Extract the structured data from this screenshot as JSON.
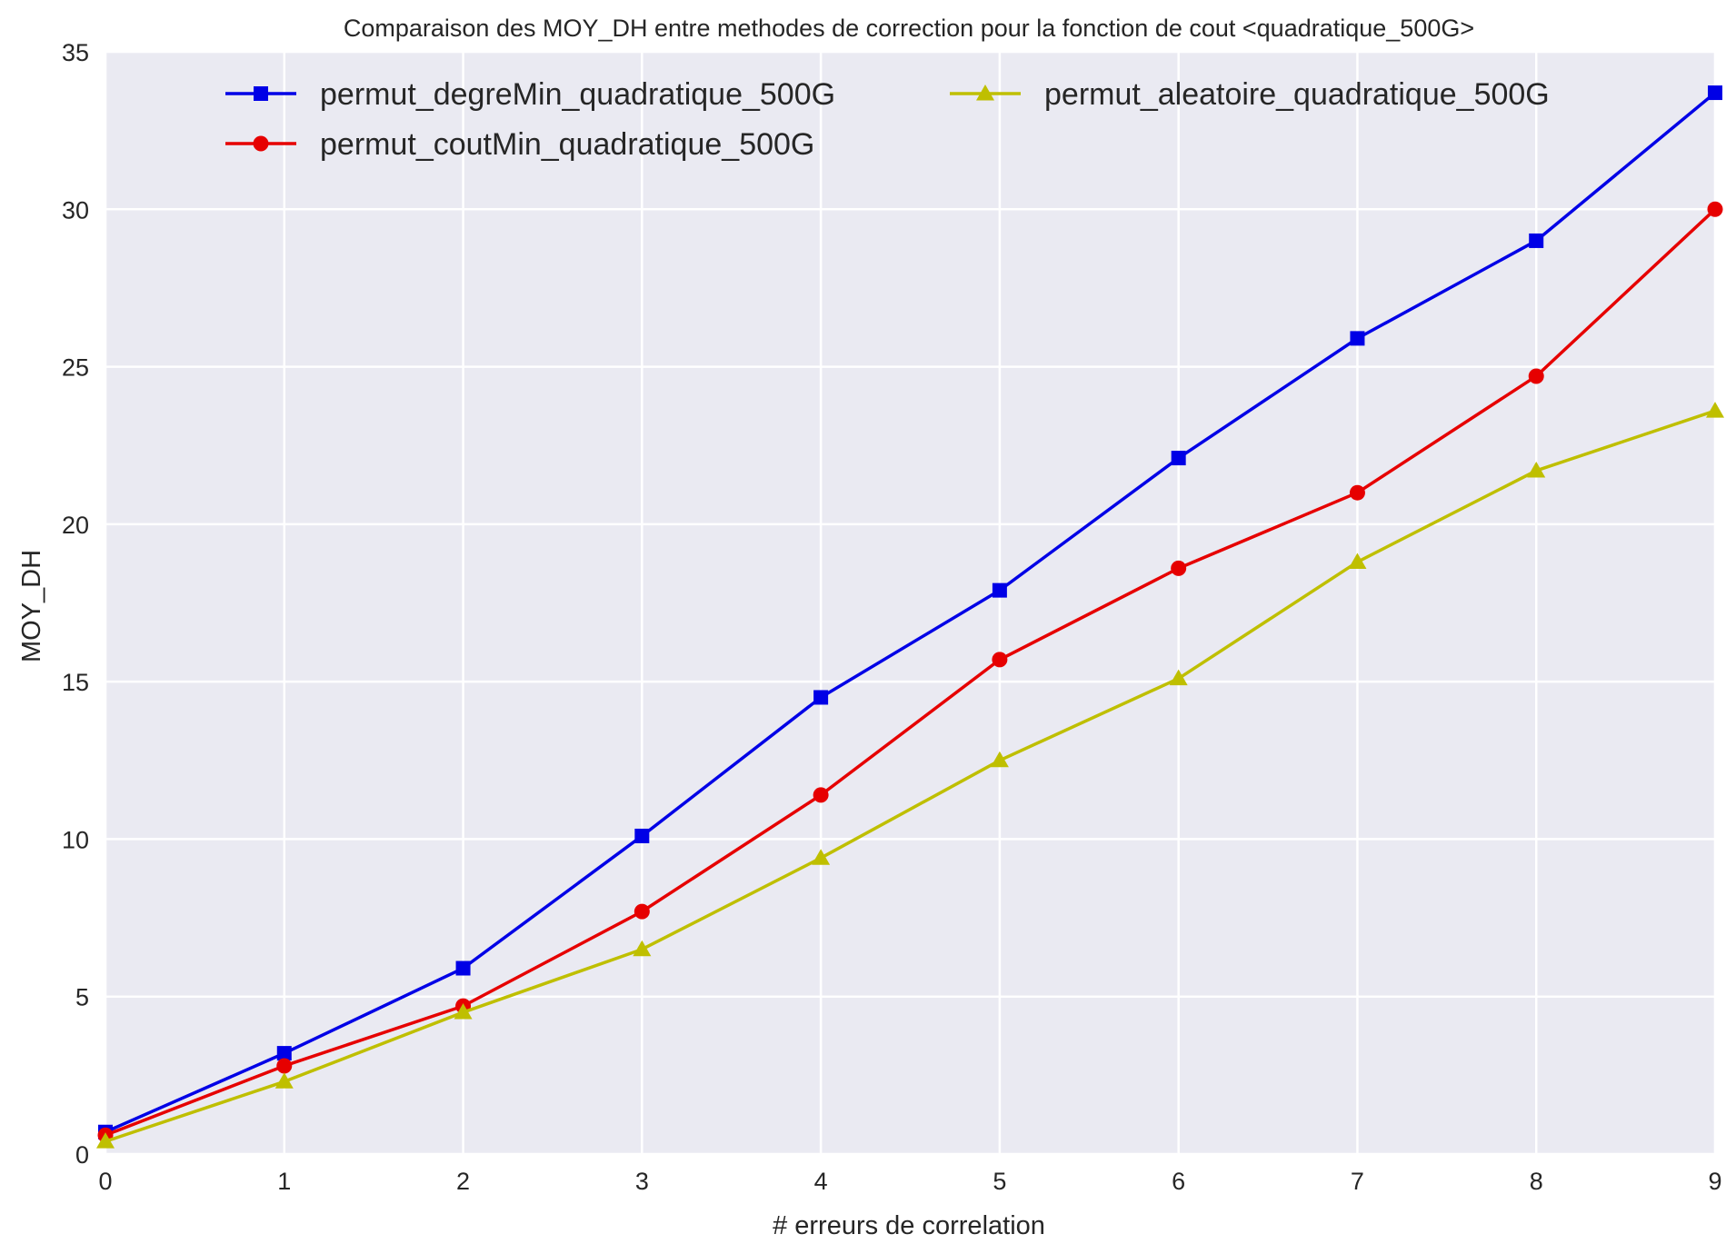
{
  "chart_data": {
    "type": "line",
    "title": "Comparaison des MOY_DH entre methodes de correction pour la fonction de cout <quadratique_500G>",
    "xlabel": "# erreurs de correlation",
    "ylabel": "MOY_DH",
    "xlim": [
      0,
      9
    ],
    "ylim": [
      0,
      35
    ],
    "x_ticks": [
      "0",
      "1",
      "2",
      "3",
      "4",
      "5",
      "6",
      "7",
      "8",
      "9"
    ],
    "y_ticks": [
      "0",
      "5",
      "10",
      "15",
      "20",
      "25",
      "30",
      "35"
    ],
    "grid": true,
    "legend_position": "top",
    "background_color": "#eaeaf2",
    "grid_color": "#ffffff",
    "x": [
      0,
      1,
      2,
      3,
      4,
      5,
      6,
      7,
      8,
      9
    ],
    "series": [
      {
        "name": "permut_degreMin_quadratique_500G",
        "color": "#0000e6",
        "marker": "square",
        "values": [
          0.7,
          3.2,
          5.9,
          10.1,
          14.5,
          17.9,
          22.1,
          25.9,
          29.0,
          33.7
        ]
      },
      {
        "name": "permut_coutMin_quadratique_500G",
        "color": "#e60000",
        "marker": "circle",
        "values": [
          0.6,
          2.8,
          4.7,
          7.7,
          11.4,
          15.7,
          18.6,
          21.0,
          24.7,
          30.0
        ]
      },
      {
        "name": "permut_aleatoire_quadratique_500G",
        "color": "#bfbf00",
        "marker": "triangle",
        "values": [
          0.4,
          2.3,
          4.5,
          6.5,
          9.4,
          12.5,
          15.1,
          18.8,
          21.7,
          23.6
        ]
      }
    ]
  }
}
